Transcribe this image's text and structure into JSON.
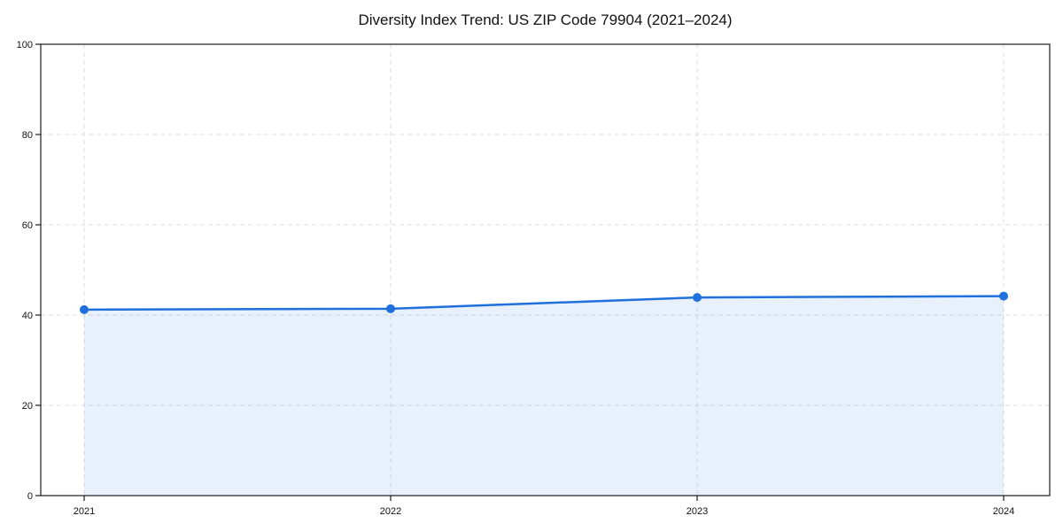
{
  "chart_data": {
    "type": "area",
    "title": "Diversity Index Trend: US ZIP Code 79904 (2021–2024)",
    "x": [
      2021,
      2022,
      2023,
      2024
    ],
    "categories": [
      "2021",
      "2022",
      "2023",
      "2024"
    ],
    "series": [
      {
        "name": "Diversity Index",
        "values": [
          41.2,
          41.4,
          43.9,
          44.2
        ]
      }
    ],
    "xlabel": "",
    "ylabel": "",
    "ylim": [
      0,
      100
    ],
    "yticks": [
      0,
      20,
      40,
      60,
      80,
      100
    ],
    "grid": "dashed-both-axes",
    "legend": "none",
    "line_color": "#1f6fdc",
    "marker_color": "#1f6fdc",
    "fill_color": "#1f6fdc",
    "fill_opacity": 0.1,
    "grid_color": "#dedede",
    "axis_color": "#1a1a1a",
    "text_color": "#111111",
    "background": "#ffffff"
  }
}
